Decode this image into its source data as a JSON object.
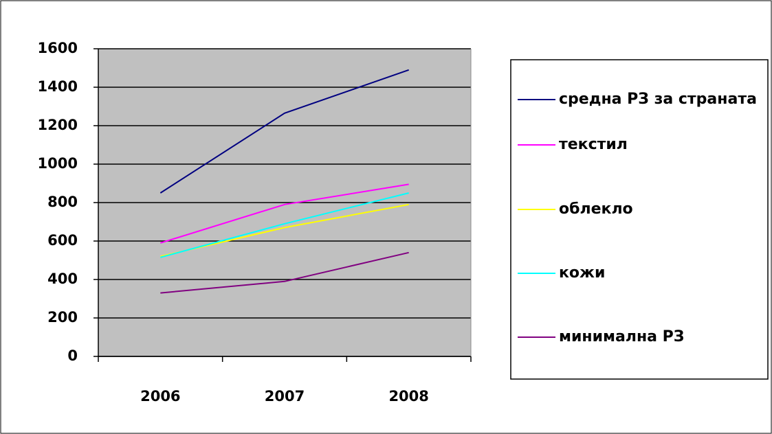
{
  "chart_data": {
    "type": "line",
    "categories": [
      "2006",
      "2007",
      "2008"
    ],
    "series": [
      {
        "name": "средна РЗ за страната",
        "color": "#000080",
        "values": [
          850,
          1265,
          1490
        ]
      },
      {
        "name": "текстил",
        "color": "#ff00ff",
        "values": [
          590,
          790,
          895
        ]
      },
      {
        "name": "облекло",
        "color": "#ffff00",
        "values": [
          520,
          670,
          790
        ]
      },
      {
        "name": "кожи",
        "color": "#00ffff",
        "values": [
          515,
          690,
          850
        ]
      },
      {
        "name": "минимална РЗ",
        "color": "#800080",
        "values": [
          330,
          390,
          540
        ]
      }
    ],
    "ylim": [
      0,
      1600
    ],
    "yticks": [
      0,
      200,
      400,
      600,
      800,
      1000,
      1200,
      1400,
      1600
    ],
    "grid": true,
    "legend": "right",
    "plot_background": "#c0c0c0"
  }
}
